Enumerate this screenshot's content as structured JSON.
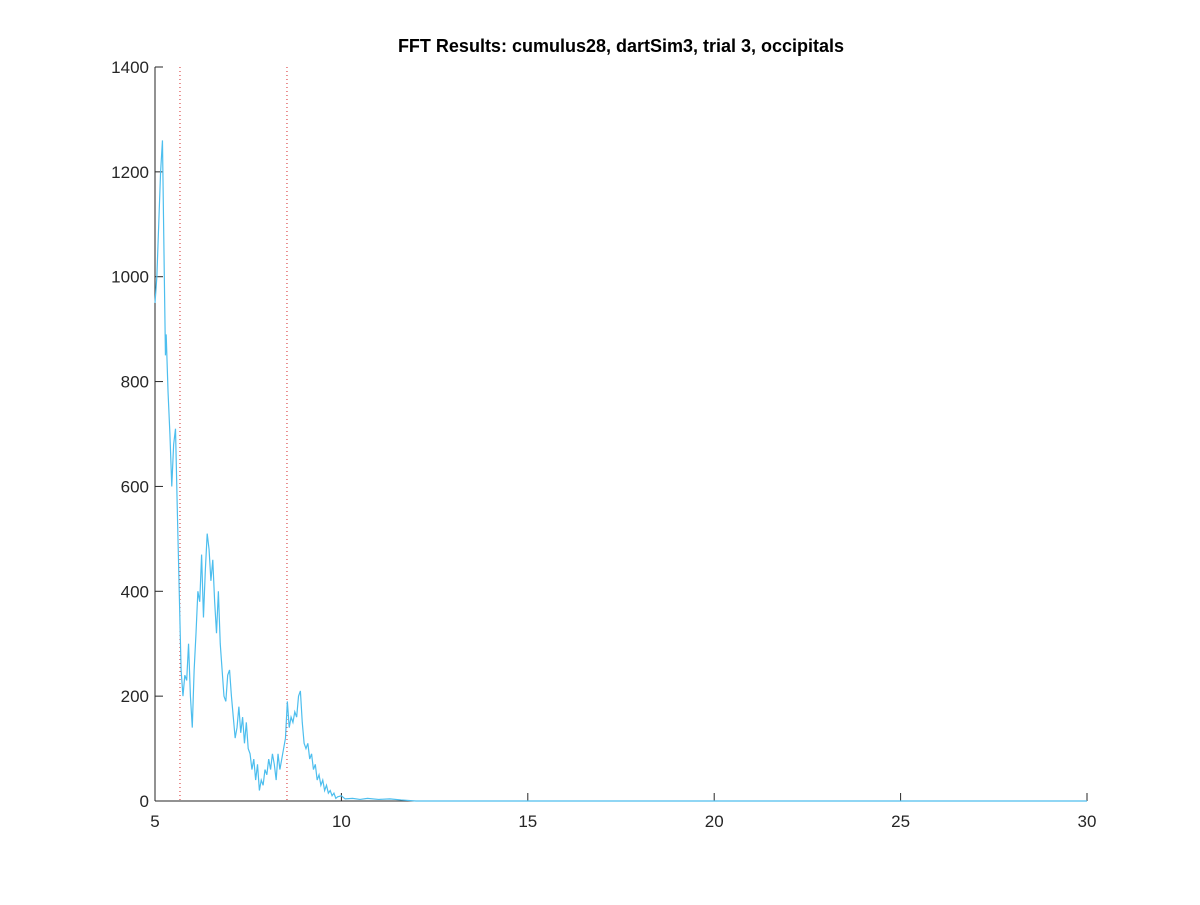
{
  "chart_data": {
    "type": "line",
    "title": "FFT Results: cumulus28, dartSim3, trial 3, occipitals",
    "x": [
      5.0,
      5.05,
      5.1,
      5.15,
      5.2,
      5.25,
      5.28,
      5.3,
      5.35,
      5.4,
      5.45,
      5.5,
      5.55,
      5.6,
      5.65,
      5.7,
      5.75,
      5.8,
      5.85,
      5.9,
      5.95,
      6.0,
      6.05,
      6.1,
      6.15,
      6.2,
      6.25,
      6.3,
      6.35,
      6.4,
      6.45,
      6.5,
      6.55,
      6.6,
      6.65,
      6.7,
      6.75,
      6.8,
      6.85,
      6.9,
      6.95,
      7.0,
      7.05,
      7.1,
      7.15,
      7.2,
      7.25,
      7.3,
      7.35,
      7.4,
      7.45,
      7.5,
      7.55,
      7.6,
      7.65,
      7.7,
      7.75,
      7.8,
      7.85,
      7.9,
      7.95,
      8.0,
      8.05,
      8.1,
      8.15,
      8.2,
      8.25,
      8.3,
      8.35,
      8.4,
      8.5,
      8.55,
      8.6,
      8.65,
      8.7,
      8.75,
      8.8,
      8.85,
      8.9,
      8.95,
      9.0,
      9.05,
      9.1,
      9.15,
      9.2,
      9.25,
      9.3,
      9.35,
      9.4,
      9.45,
      9.5,
      9.55,
      9.6,
      9.65,
      9.7,
      9.75,
      9.8,
      9.85,
      9.9,
      10.0,
      10.1,
      10.3,
      10.5,
      10.7,
      11.0,
      11.3,
      11.6,
      12.0,
      30.0
    ],
    "values": [
      950,
      1000,
      1100,
      1200,
      1260,
      1000,
      850,
      890,
      780,
      700,
      600,
      680,
      710,
      550,
      400,
      250,
      200,
      240,
      230,
      300,
      200,
      140,
      250,
      320,
      400,
      380,
      470,
      350,
      440,
      510,
      480,
      420,
      460,
      380,
      320,
      400,
      300,
      250,
      200,
      190,
      240,
      250,
      200,
      160,
      120,
      140,
      180,
      130,
      160,
      110,
      150,
      100,
      90,
      60,
      80,
      40,
      70,
      20,
      40,
      30,
      60,
      50,
      80,
      60,
      90,
      70,
      40,
      90,
      60,
      80,
      120,
      190,
      140,
      160,
      150,
      170,
      160,
      200,
      210,
      150,
      110,
      100,
      110,
      80,
      90,
      60,
      70,
      40,
      50,
      30,
      40,
      20,
      30,
      15,
      20,
      10,
      15,
      5,
      8,
      10,
      4,
      5,
      3,
      5,
      3,
      4,
      2,
      0,
      0
    ],
    "color": "#4dbeee",
    "vlines": [
      5.67,
      8.54
    ],
    "vline_color": "#d62728",
    "xlim": [
      5,
      30
    ],
    "xticks": [
      5,
      10,
      15,
      20,
      25,
      30
    ],
    "ylim": [
      0,
      1400
    ],
    "yticks": [
      0,
      200,
      400,
      600,
      800,
      1000,
      1200,
      1400
    ]
  }
}
